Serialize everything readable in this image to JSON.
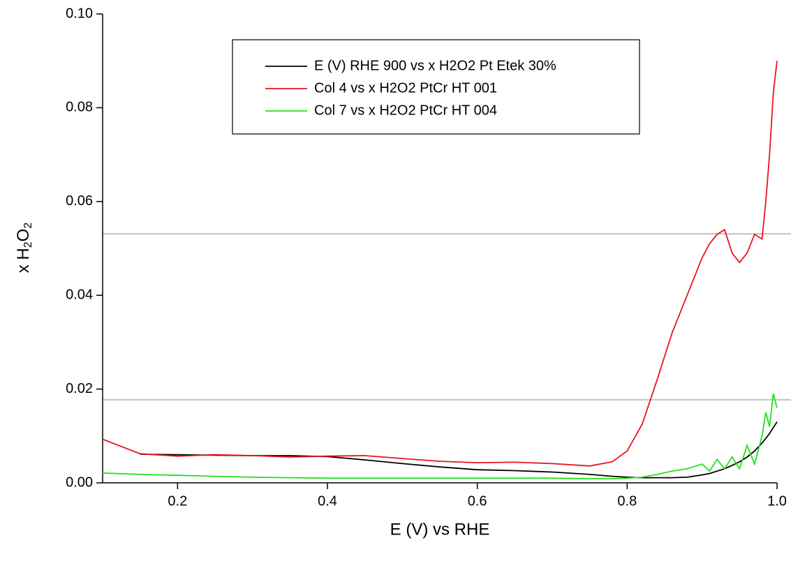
{
  "chart_data": {
    "type": "line",
    "xlabel": "E (V) vs RHE",
    "ylabel": [
      "x H",
      "2",
      "O",
      "2"
    ],
    "x": [
      0.1,
      0.15,
      0.2,
      0.25,
      0.3,
      0.35,
      0.4,
      0.45,
      0.5,
      0.55,
      0.6,
      0.65,
      0.7,
      0.75,
      0.78,
      0.8,
      0.82,
      0.84,
      0.86,
      0.88,
      0.9,
      0.91,
      0.92,
      0.93,
      0.94,
      0.95,
      0.96,
      0.97,
      0.98,
      0.985,
      0.99,
      0.995,
      1.0
    ],
    "series": [
      {
        "name": "E (V) RHE 900 vs x H2O2 Pt Etek 30%",
        "color": "#000000",
        "values": [
          null,
          0.0061,
          0.006,
          0.0059,
          0.0058,
          0.0058,
          0.0056,
          0.0049,
          0.0041,
          0.0034,
          0.0028,
          0.0026,
          0.0023,
          0.0018,
          0.0014,
          0.0012,
          0.0011,
          0.0011,
          0.0011,
          0.0012,
          0.0017,
          0.002,
          0.0025,
          0.003,
          0.0037,
          0.0045,
          0.0055,
          0.0068,
          0.0085,
          0.0095,
          0.0105,
          0.0118,
          0.013
        ]
      },
      {
        "name": "Col 4 vs x H2O2 PtCr HT 001",
        "color": "#e8141c",
        "values": [
          0.0093,
          0.0062,
          0.0057,
          0.006,
          0.0058,
          0.0055,
          0.0057,
          0.0058,
          0.0052,
          0.0046,
          0.0043,
          0.0044,
          0.0041,
          0.0036,
          0.0045,
          0.0068,
          0.0125,
          0.022,
          0.032,
          0.04,
          0.048,
          0.051,
          0.053,
          0.054,
          0.049,
          0.047,
          0.049,
          0.053,
          0.052,
          0.06,
          0.07,
          0.083,
          0.09
        ]
      },
      {
        "name": "Col 7 vs x H2O2 PtCr HT 004",
        "color": "#22e01a",
        "values": [
          0.0021,
          0.0018,
          0.0016,
          0.0014,
          0.0012,
          0.0011,
          0.001,
          0.001,
          0.001,
          0.001,
          0.001,
          0.001,
          0.001,
          0.0009,
          0.0009,
          0.001,
          0.0012,
          0.0018,
          0.0025,
          0.003,
          0.004,
          0.0025,
          0.005,
          0.003,
          0.0055,
          0.003,
          0.008,
          0.004,
          0.01,
          0.015,
          0.012,
          0.019,
          0.016
        ]
      }
    ],
    "hlines": [
      0.0531,
      0.0177
    ],
    "hline_color": "#b0b0b0",
    "xlim": [
      0.1,
      1.0
    ],
    "xticks": [
      0.2,
      0.4,
      0.6,
      0.8,
      {
        "value": 1.0,
        "label": "1.0"
      }
    ],
    "ylim": [
      0,
      0.1
    ],
    "yticks": [
      {
        "value": 0,
        "label": "0.00"
      },
      {
        "value": 0.02,
        "label": "0.02"
      },
      {
        "value": 0.04,
        "label": "0.04"
      },
      {
        "value": 0.06,
        "label": "0.06"
      },
      {
        "value": 0.08,
        "label": "0.08"
      },
      {
        "value": 0.1,
        "label": "0.10"
      }
    ]
  }
}
